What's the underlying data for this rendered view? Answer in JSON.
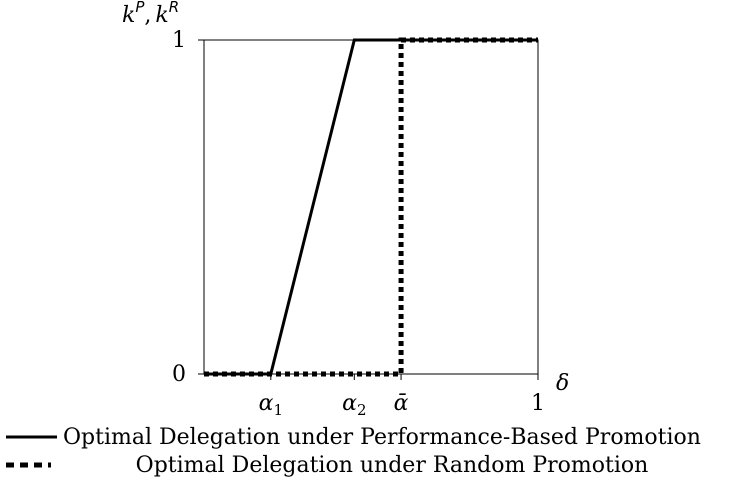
{
  "chart_data": {
    "type": "line",
    "ylabel": "k^P, k^R",
    "xlabel": "δ",
    "xlim": [
      0,
      1
    ],
    "ylim": [
      0,
      1
    ],
    "grid": false,
    "y_ticks": [
      {
        "value": 0,
        "label": "0"
      },
      {
        "value": 1,
        "label": "1"
      }
    ],
    "x_ticks": [
      {
        "value": 0.2,
        "label": "α1"
      },
      {
        "value": 0.45,
        "label": "α2"
      },
      {
        "value": 0.59,
        "label": "ᾱ"
      },
      {
        "value": 1,
        "label": "1"
      }
    ],
    "series": [
      {
        "name": "Optimal Delegation under Performance-Based Promotion",
        "style": "solid",
        "color": "#000000",
        "x": [
          0,
          0.2,
          0.45,
          1
        ],
        "y": [
          0,
          0,
          1,
          1
        ]
      },
      {
        "name": "Optimal Delegation under Random Promotion",
        "style": "dotted",
        "color": "#000000",
        "x": [
          0,
          0.59,
          0.59,
          1
        ],
        "y": [
          0,
          0,
          1,
          1
        ]
      }
    ],
    "legend_position": "bottom"
  }
}
